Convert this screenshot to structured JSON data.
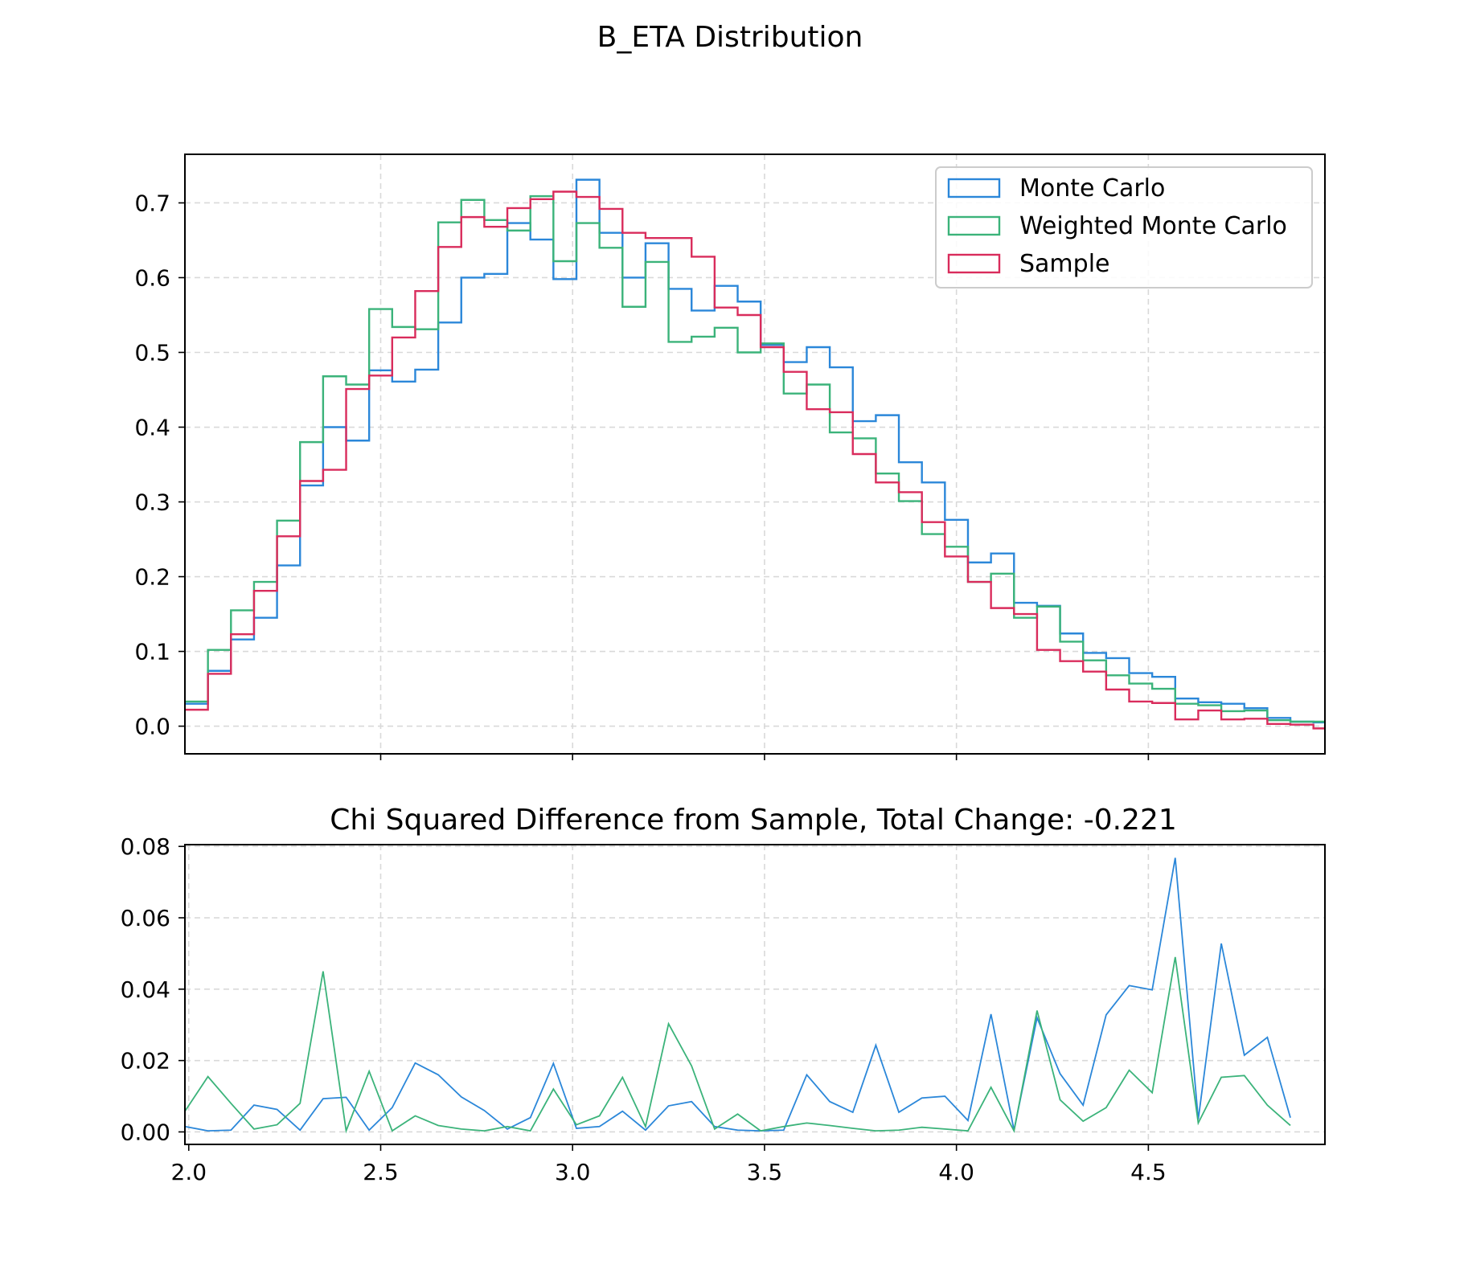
{
  "figure": {
    "suptitle": "B_ETA Distribution"
  },
  "colors": {
    "monte_carlo": "#2b87d9",
    "weighted_monte_carlo": "#3bb37a",
    "sample": "#d92c5c",
    "grid": "#d9d9d9"
  },
  "chart_data": [
    {
      "type": "line",
      "subtype": "step-histogram",
      "title": "",
      "xlabel": "",
      "ylabel": "",
      "xlim": [
        1.99,
        4.96
      ],
      "ylim": [
        -0.037,
        0.765
      ],
      "grid": true,
      "legend_position": "upper right",
      "xticks": [
        2.5,
        3.0,
        3.5,
        4.0,
        4.5
      ],
      "yticks": [
        0.0,
        0.1,
        0.2,
        0.3,
        0.4,
        0.5,
        0.6,
        0.7
      ],
      "ytick_labels": [
        "0.0",
        "0.1",
        "0.2",
        "0.3",
        "0.4",
        "0.5",
        "0.6",
        "0.7"
      ],
      "bin_edges": [
        1.99,
        2.05,
        2.11,
        2.17,
        2.23,
        2.29,
        2.35,
        2.41,
        2.47,
        2.53,
        2.59,
        2.65,
        2.71,
        2.77,
        2.83,
        2.89,
        2.95,
        3.01,
        3.07,
        3.13,
        3.19,
        3.25,
        3.31,
        3.37,
        3.43,
        3.49,
        3.55,
        3.61,
        3.67,
        3.73,
        3.79,
        3.85,
        3.91,
        3.97,
        4.03,
        4.09,
        4.15,
        4.21,
        4.27,
        4.33,
        4.39,
        4.45,
        4.51,
        4.57,
        4.63,
        4.69,
        4.75,
        4.81,
        4.87,
        4.93,
        4.99
      ],
      "series": [
        {
          "name": "Monte Carlo",
          "color_key": "monte_carlo",
          "values": [
            0.03,
            0.074,
            0.116,
            0.145,
            0.215,
            0.322,
            0.4,
            0.382,
            0.476,
            0.461,
            0.477,
            0.54,
            0.6,
            0.605,
            0.673,
            0.651,
            0.598,
            0.731,
            0.66,
            0.6,
            0.646,
            0.585,
            0.556,
            0.589,
            0.568,
            0.51,
            0.487,
            0.507,
            0.48,
            0.408,
            0.416,
            0.353,
            0.326,
            0.276,
            0.219,
            0.231,
            0.165,
            0.161,
            0.124,
            0.098,
            0.091,
            0.071,
            0.066,
            0.037,
            0.032,
            0.03,
            0.024,
            0.011,
            0.006,
            0.005
          ]
        },
        {
          "name": "Weighted Monte Carlo",
          "color_key": "weighted_monte_carlo",
          "values": [
            0.033,
            0.102,
            0.155,
            0.193,
            0.275,
            0.38,
            0.468,
            0.457,
            0.558,
            0.534,
            0.531,
            0.674,
            0.704,
            0.677,
            0.663,
            0.709,
            0.622,
            0.673,
            0.64,
            0.561,
            0.621,
            0.514,
            0.521,
            0.533,
            0.5,
            0.512,
            0.445,
            0.457,
            0.393,
            0.385,
            0.338,
            0.301,
            0.257,
            0.24,
            0.193,
            0.204,
            0.145,
            0.16,
            0.113,
            0.088,
            0.068,
            0.057,
            0.05,
            0.03,
            0.028,
            0.02,
            0.021,
            0.008,
            0.006,
            0.006
          ]
        },
        {
          "name": "Sample",
          "color_key": "sample",
          "values": [
            0.022,
            0.07,
            0.123,
            0.181,
            0.254,
            0.328,
            0.343,
            0.451,
            0.469,
            0.52,
            0.582,
            0.641,
            0.681,
            0.668,
            0.693,
            0.705,
            0.715,
            0.708,
            0.692,
            0.66,
            0.653,
            0.653,
            0.628,
            0.56,
            0.55,
            0.507,
            0.474,
            0.424,
            0.42,
            0.364,
            0.326,
            0.313,
            0.273,
            0.227,
            0.193,
            0.158,
            0.15,
            0.102,
            0.087,
            0.073,
            0.049,
            0.033,
            0.031,
            0.009,
            0.021,
            0.009,
            0.01,
            0.003,
            0.002,
            -0.003
          ]
        }
      ]
    },
    {
      "type": "line",
      "title": "Chi Squared Difference from Sample, Total Change: -0.221",
      "xlabel": "",
      "ylabel": "",
      "xlim": [
        1.99,
        4.96
      ],
      "ylim": [
        -0.0035,
        0.0805
      ],
      "grid": true,
      "xticks": [
        2.0,
        2.5,
        3.0,
        3.5,
        4.0,
        4.5
      ],
      "xtick_labels": [
        "2.0",
        "2.5",
        "3.0",
        "3.5",
        "4.0",
        "4.5"
      ],
      "yticks": [
        0.0,
        0.02,
        0.04,
        0.06,
        0.08
      ],
      "ytick_labels": [
        "0.00",
        "0.02",
        "0.04",
        "0.06",
        "0.08"
      ],
      "x": [
        1.99,
        2.05,
        2.11,
        2.17,
        2.23,
        2.29,
        2.35,
        2.41,
        2.47,
        2.53,
        2.59,
        2.65,
        2.71,
        2.77,
        2.83,
        2.89,
        2.95,
        3.01,
        3.07,
        3.13,
        3.19,
        3.25,
        3.31,
        3.37,
        3.43,
        3.49,
        3.55,
        3.61,
        3.67,
        3.73,
        3.79,
        3.85,
        3.91,
        3.97,
        4.03,
        4.09,
        4.15,
        4.21,
        4.27,
        4.33,
        4.39,
        4.45,
        4.51,
        4.57,
        4.63,
        4.69,
        4.75,
        4.81,
        4.87
      ],
      "series": [
        {
          "color_key": "monte_carlo",
          "values": [
            0.0015,
            0.0003,
            0.0005,
            0.0075,
            0.0063,
            0.0005,
            0.0093,
            0.0097,
            0.0005,
            0.0068,
            0.0193,
            0.016,
            0.0098,
            0.006,
            0.0008,
            0.004,
            0.0192,
            0.001,
            0.0015,
            0.0058,
            0.0005,
            0.0073,
            0.0085,
            0.0015,
            0.0005,
            0.0003,
            0.0005,
            0.016,
            0.0085,
            0.0055,
            0.0243,
            0.0055,
            0.0095,
            0.01,
            0.0032,
            0.033,
            0.0005,
            0.032,
            0.0163,
            0.0075,
            0.0328,
            0.041,
            0.0398,
            0.0768,
            0.0035,
            0.0528,
            0.0215,
            0.0265,
            0.004
          ]
        },
        {
          "color_key": "weighted_monte_carlo",
          "values": [
            0.0058,
            0.0155,
            0.008,
            0.0008,
            0.002,
            0.008,
            0.045,
            0.0003,
            0.017,
            0.0003,
            0.0045,
            0.0018,
            0.0008,
            0.0003,
            0.0015,
            0.0003,
            0.012,
            0.002,
            0.0045,
            0.0153,
            0.0015,
            0.0303,
            0.0185,
            0.0008,
            0.005,
            0.0003,
            0.0015,
            0.0025,
            0.0018,
            0.001,
            0.0003,
            0.0005,
            0.0013,
            0.0008,
            0.0003,
            0.0125,
            0.0003,
            0.034,
            0.009,
            0.003,
            0.0068,
            0.0173,
            0.011,
            0.049,
            0.0025,
            0.0153,
            0.0158,
            0.0075,
            0.0018
          ]
        }
      ]
    }
  ]
}
